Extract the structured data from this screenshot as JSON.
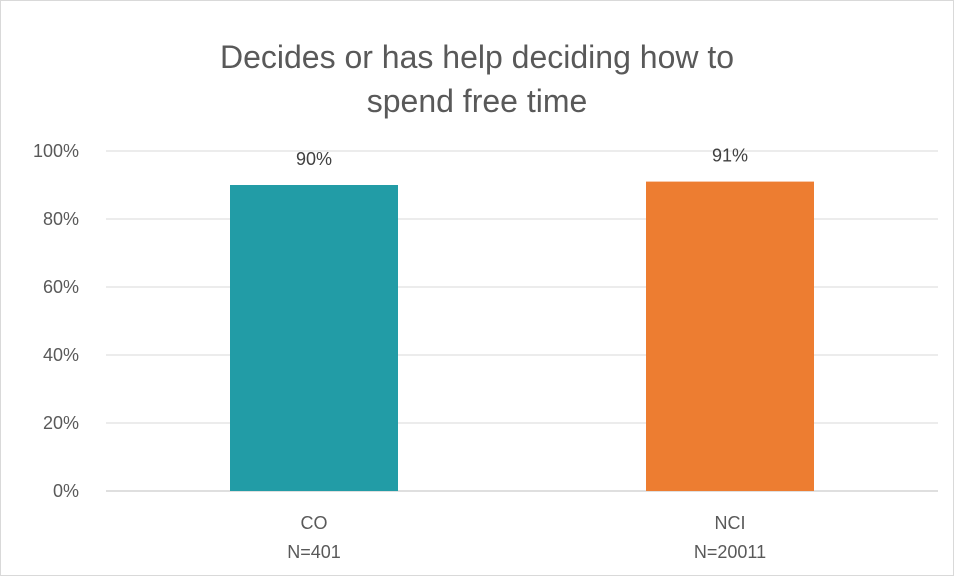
{
  "chart_data": {
    "type": "bar",
    "title": "Decides or has help deciding how to spend free time",
    "categories": [
      {
        "label": "CO",
        "sublabel": "N=401"
      },
      {
        "label": "NCI",
        "sublabel": "N=20011"
      }
    ],
    "series": [
      {
        "values": [
          90,
          91
        ],
        "data_labels": [
          "90%",
          "91%"
        ],
        "colors": [
          "#229CA6",
          "#ED7D31"
        ]
      }
    ],
    "ylim": [
      0,
      100
    ],
    "yticks": [
      "0%",
      "20%",
      "40%",
      "60%",
      "80%",
      "100%"
    ],
    "grid": true,
    "legend": "none"
  }
}
